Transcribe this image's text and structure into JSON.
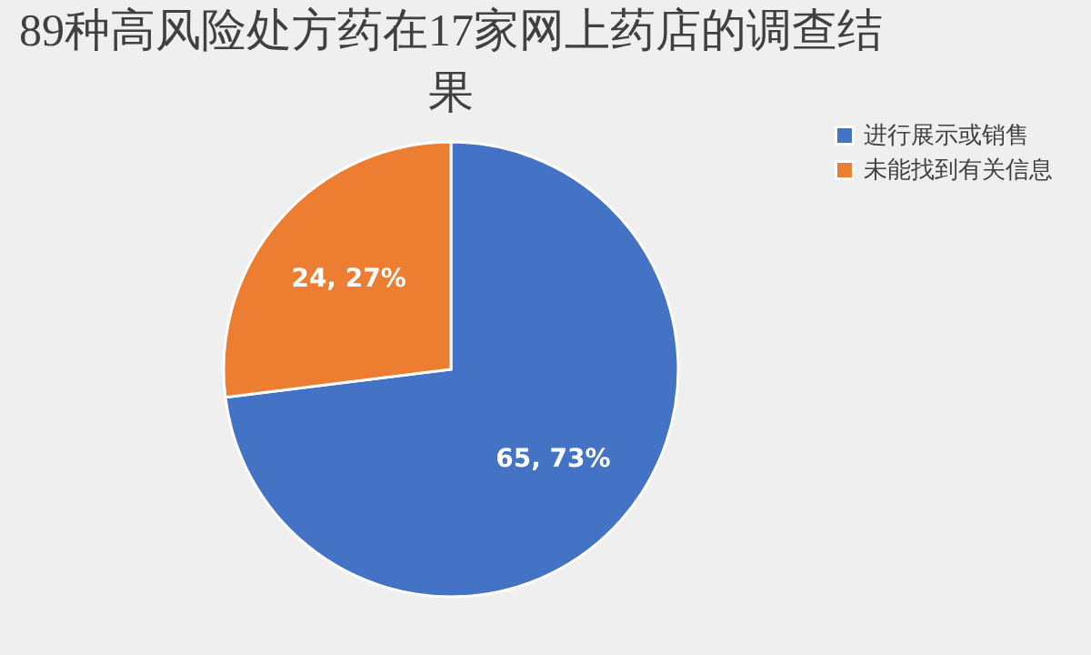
{
  "chart_data": {
    "type": "pie",
    "title": "89种高风险处方药在17家网上药店的调查结果",
    "categories": [
      "进行展示或销售",
      "未能找到有关信息"
    ],
    "values": [
      65,
      24
    ],
    "colors": [
      "#4472c4",
      "#ed7d31"
    ],
    "value_labels": [
      "65, 73%",
      "24, 27%"
    ],
    "legend": "right"
  }
}
